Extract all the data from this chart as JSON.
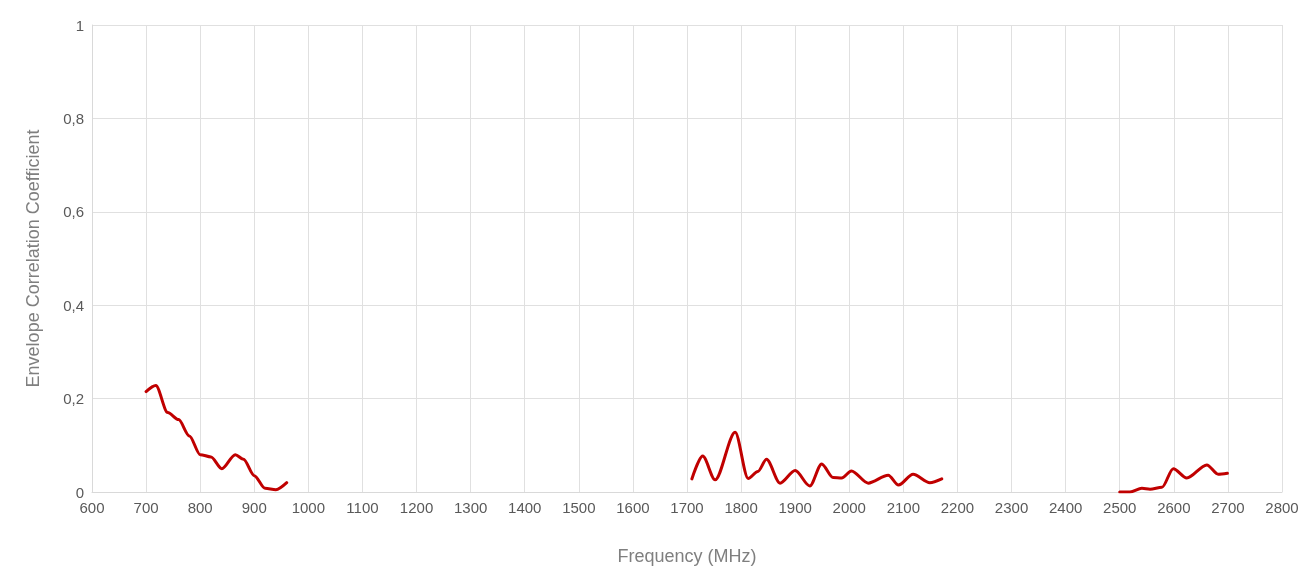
{
  "chart_data": {
    "type": "line",
    "xlabel": "Frequency (MHz)",
    "ylabel": "Envelope Correlation Coefficient",
    "x": [
      700,
      718,
      740,
      760,
      780,
      800,
      820,
      840,
      865,
      880,
      900,
      920,
      940,
      960,
      1330,
      1709,
      1729,
      1752,
      1789,
      1813,
      1831,
      1847,
      1872,
      1900,
      1927,
      1949,
      1970,
      1986,
      2004,
      2035,
      2072,
      2091,
      2118,
      2149,
      2171,
      2330,
      2500,
      2519,
      2541,
      2556,
      2578,
      2599,
      2624,
      2661,
      2682,
      2699
    ],
    "series": [
      {
        "color": "#c00000",
        "values": [
          0.215,
          0.228,
          0.17,
          0.155,
          0.12,
          0.08,
          0.075,
          0.05,
          0.08,
          0.07,
          0.035,
          0.008,
          0.005,
          0.02,
          null,
          0.028,
          0.077,
          0.026,
          0.128,
          0.029,
          0.044,
          0.07,
          0.019,
          0.046,
          0.013,
          0.06,
          0.031,
          0.03,
          0.045,
          0.019,
          0.036,
          0.015,
          0.038,
          0.02,
          0.028,
          null,
          0,
          0,
          0.008,
          0.006,
          0.01,
          0.05,
          0.03,
          0.058,
          0.038,
          0.04
        ]
      }
    ],
    "xlim": [
      600,
      2800
    ],
    "xticks": [
      600,
      700,
      800,
      900,
      1000,
      1100,
      1200,
      1300,
      1400,
      1500,
      1600,
      1700,
      1800,
      1900,
      2000,
      2100,
      2200,
      2300,
      2400,
      2500,
      2600,
      2700,
      2800
    ],
    "ylim": [
      0,
      1
    ],
    "yticks": [
      0,
      {
        "value": 0.2,
        "label": "0,2"
      },
      {
        "value": 0.4,
        "label": "0,4"
      },
      {
        "value": 0.6,
        "label": "0,6"
      },
      {
        "value": 0.8,
        "label": "0,8"
      },
      1
    ],
    "grid": true,
    "marker": "none",
    "line_style": "solid"
  }
}
